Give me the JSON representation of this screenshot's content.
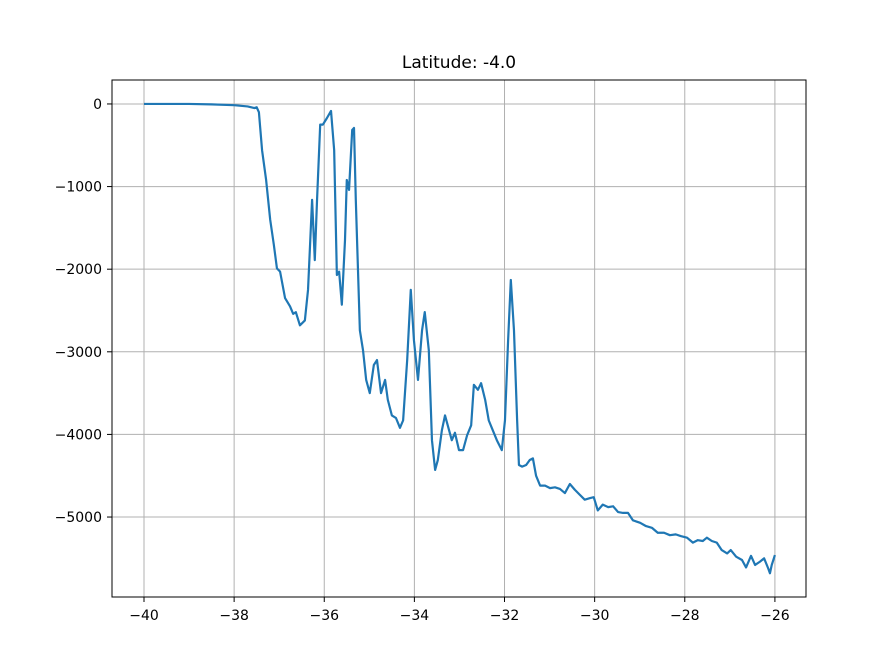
{
  "chart_data": {
    "type": "line",
    "title": "Latitude: -4.0",
    "color": "#1f77b4",
    "grid": true,
    "x": [
      -40,
      -39,
      -38.5,
      -38,
      -37.7,
      -37.55,
      -37.5,
      -37.45,
      -37.38,
      -37.29,
      -37.2,
      -37.12,
      -37.05,
      -36.98,
      -36.87,
      -36.76,
      -36.69,
      -36.63,
      -36.54,
      -36.43,
      -36.36,
      -36.27,
      -36.21,
      -36.16,
      -36.09,
      -36.03,
      -35.94,
      -35.85,
      -35.78,
      -35.72,
      -35.67,
      -35.61,
      -35.54,
      -35.5,
      -35.45,
      -35.38,
      -35.34,
      -35.3,
      -35.21,
      -35.14,
      -35.07,
      -34.99,
      -34.9,
      -34.83,
      -34.74,
      -34.65,
      -34.59,
      -34.5,
      -34.41,
      -34.32,
      -34.25,
      -34.16,
      -34.08,
      -34.01,
      -33.92,
      -33.83,
      -33.77,
      -33.68,
      -33.61,
      -33.54,
      -33.48,
      -33.39,
      -33.32,
      -33.23,
      -33.17,
      -33.1,
      -33.01,
      -32.92,
      -32.83,
      -32.74,
      -32.68,
      -32.59,
      -32.52,
      -32.43,
      -32.35,
      -32.26,
      -32.17,
      -32.06,
      -31.99,
      -31.92,
      -31.86,
      -31.79,
      -31.72,
      -31.68,
      -31.61,
      -31.52,
      -31.44,
      -31.37,
      -31.3,
      -31.21,
      -31.1,
      -30.99,
      -30.88,
      -30.77,
      -30.66,
      -30.55,
      -30.44,
      -30.33,
      -30.22,
      -30.1,
      -30.02,
      -29.93,
      -29.82,
      -29.7,
      -29.59,
      -29.48,
      -29.37,
      -29.26,
      -29.15,
      -28.99,
      -28.86,
      -28.73,
      -28.6,
      -28.46,
      -28.33,
      -28.2,
      -28.09,
      -27.95,
      -27.82,
      -27.71,
      -27.6,
      -27.51,
      -27.4,
      -27.29,
      -27.18,
      -27.06,
      -26.98,
      -26.86,
      -26.73,
      -26.64,
      -26.53,
      -26.44,
      -26.33,
      -26.24,
      -26.15,
      -26.11,
      -26.07,
      -26.0
    ],
    "values": [
      0,
      0,
      -5,
      -15,
      -30,
      -50,
      -40,
      -100,
      -560,
      -920,
      -1400,
      -1700,
      -1990,
      -2030,
      -2350,
      -2450,
      -2540,
      -2520,
      -2680,
      -2620,
      -2250,
      -1160,
      -1890,
      -1160,
      -250,
      -250,
      -170,
      -85,
      -560,
      -2070,
      -2030,
      -2430,
      -1650,
      -920,
      -1040,
      -315,
      -290,
      -1160,
      -2740,
      -2980,
      -3340,
      -3500,
      -3160,
      -3100,
      -3500,
      -3340,
      -3580,
      -3770,
      -3800,
      -3920,
      -3830,
      -3100,
      -2250,
      -2860,
      -3340,
      -2740,
      -2520,
      -2980,
      -4070,
      -4430,
      -4310,
      -3950,
      -3770,
      -3950,
      -4070,
      -3980,
      -4190,
      -4190,
      -4010,
      -3890,
      -3400,
      -3460,
      -3380,
      -3580,
      -3830,
      -3950,
      -4070,
      -4190,
      -3830,
      -2860,
      -2130,
      -2740,
      -3830,
      -4370,
      -4390,
      -4370,
      -4310,
      -4290,
      -4500,
      -4620,
      -4620,
      -4650,
      -4640,
      -4660,
      -4710,
      -4600,
      -4670,
      -4730,
      -4790,
      -4770,
      -4760,
      -4920,
      -4850,
      -4880,
      -4870,
      -4940,
      -4950,
      -4950,
      -5040,
      -5070,
      -5110,
      -5130,
      -5190,
      -5190,
      -5220,
      -5210,
      -5230,
      -5250,
      -5310,
      -5280,
      -5290,
      -5250,
      -5290,
      -5310,
      -5400,
      -5440,
      -5400,
      -5480,
      -5520,
      -5610,
      -5470,
      -5580,
      -5540,
      -5500,
      -5620,
      -5680,
      -5580,
      -5460
    ],
    "xlim": [
      -40.71,
      -25.31
    ],
    "ylim": [
      -5968,
      290
    ],
    "xticks": [
      {
        "value": -40,
        "label": "−40"
      },
      {
        "value": -38,
        "label": "−38"
      },
      {
        "value": -36,
        "label": "−36"
      },
      {
        "value": -34,
        "label": "−34"
      },
      {
        "value": -32,
        "label": "−32"
      },
      {
        "value": -30,
        "label": "−30"
      },
      {
        "value": -28,
        "label": "−28"
      },
      {
        "value": -26,
        "label": "−26"
      }
    ],
    "yticks": [
      {
        "value": -5000,
        "label": "−5000"
      },
      {
        "value": -4000,
        "label": "−4000"
      },
      {
        "value": -3000,
        "label": "−3000"
      },
      {
        "value": -2000,
        "label": "−2000"
      },
      {
        "value": -1000,
        "label": "−1000"
      },
      0
    ]
  }
}
